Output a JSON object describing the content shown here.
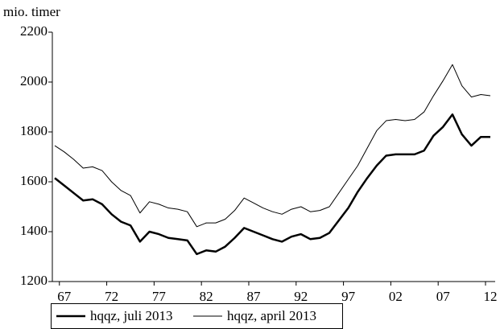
{
  "chart_data": {
    "type": "line",
    "y_label": "mio. timer",
    "categories": [
      null,
      "67",
      null,
      null,
      null,
      null,
      "72",
      null,
      null,
      null,
      null,
      "77",
      null,
      null,
      null,
      null,
      "82",
      null,
      null,
      null,
      null,
      "87",
      null,
      null,
      null,
      null,
      "92",
      null,
      null,
      null,
      null,
      "97",
      null,
      null,
      null,
      null,
      "02",
      null,
      null,
      null,
      null,
      "07",
      null,
      null,
      null,
      null,
      "12"
    ],
    "series": [
      {
        "name": "hqqz, juli 2013",
        "color": "#000000",
        "width": 2.5,
        "values": [
          1615,
          1585,
          1555,
          1525,
          1530,
          1510,
          1470,
          1440,
          1425,
          1360,
          1400,
          1390,
          1375,
          1370,
          1365,
          1310,
          1325,
          1320,
          1340,
          1375,
          1415,
          1400,
          1385,
          1370,
          1360,
          1380,
          1390,
          1370,
          1375,
          1395,
          1445,
          1495,
          1560,
          1615,
          1665,
          1705,
          1710,
          1710,
          1710,
          1725,
          1785,
          1820,
          1870,
          1790,
          1745,
          1780,
          1780
        ]
      },
      {
        "name": "hqqz, april 2013",
        "color": "#000000",
        "width": 1,
        "values": [
          1745,
          1720,
          1690,
          1655,
          1660,
          1645,
          1600,
          1565,
          1545,
          1475,
          1520,
          1510,
          1495,
          1490,
          1480,
          1420,
          1435,
          1435,
          1450,
          1485,
          1535,
          1515,
          1495,
          1480,
          1470,
          1490,
          1500,
          1480,
          1485,
          1500,
          1555,
          1610,
          1665,
          1735,
          1805,
          1845,
          1850,
          1845,
          1850,
          1880,
          1945,
          2005,
          2070,
          1985,
          1940,
          1950,
          1945
        ]
      }
    ],
    "ylim": [
      1200,
      2200
    ],
    "yticks": [
      1200,
      1400,
      1600,
      1800,
      2000,
      2200
    ],
    "grid": false
  }
}
